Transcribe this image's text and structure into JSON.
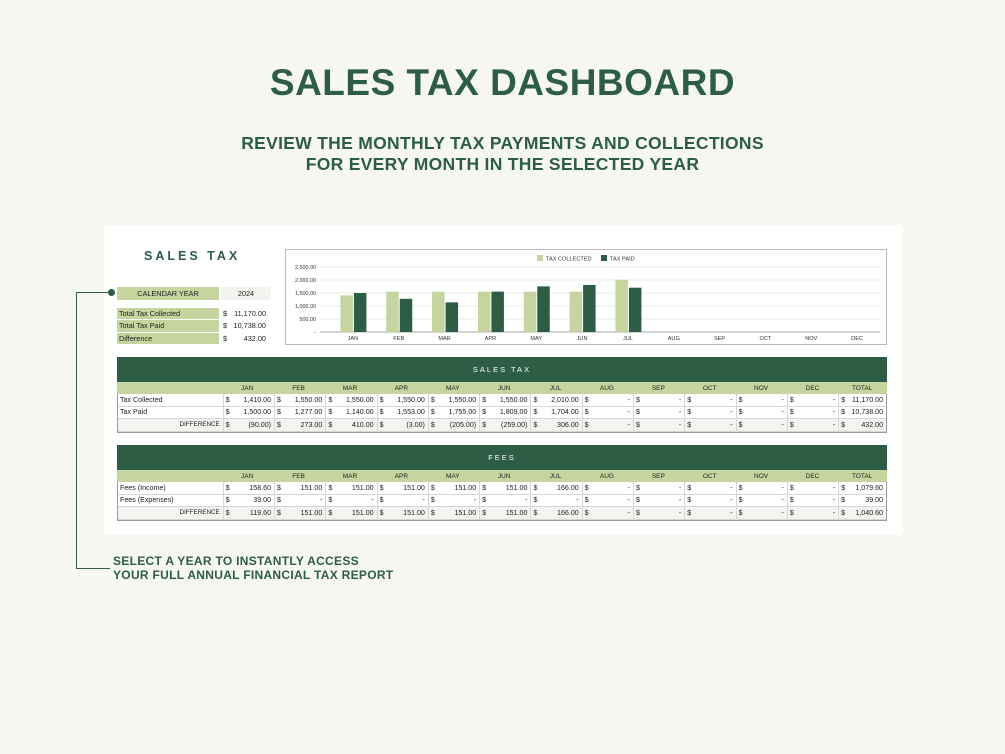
{
  "header": {
    "title": "SALES TAX DASHBOARD",
    "subtitle_line1": "REVIEW THE MONTHLY TAX PAYMENTS AND COLLECTIONS",
    "subtitle_line2": "FOR EVERY MONTH IN THE SELECTED YEAR"
  },
  "sheet": {
    "title": "SALES TAX",
    "calendar_label": "CALENDAR YEAR",
    "calendar_year": "2024",
    "summary": [
      {
        "label": "Total Tax Collected",
        "currency": "$",
        "value": "11,170.00"
      },
      {
        "label": "Total Tax Paid",
        "currency": "$",
        "value": "10,738.00"
      },
      {
        "label": "Difference",
        "currency": "$",
        "value": "432.00"
      }
    ]
  },
  "chart_data": {
    "type": "bar",
    "categories": [
      "JAN",
      "FEB",
      "MAR",
      "APR",
      "MAY",
      "JUN",
      "JUL",
      "AUG",
      "SEP",
      "OCT",
      "NOV",
      "DEC"
    ],
    "series": [
      {
        "name": "TAX COLLECTED",
        "color": "#c6d5a0",
        "values": [
          1410,
          1550,
          1550,
          1550,
          1550,
          1550,
          2010,
          0,
          0,
          0,
          0,
          0
        ]
      },
      {
        "name": "TAX PAID",
        "color": "#2e5d45",
        "values": [
          1500,
          1277,
          1140,
          1553,
          1755,
          1809,
          1704,
          0,
          0,
          0,
          0,
          0
        ]
      }
    ],
    "yticks": [
      "2,500.00",
      "2,000.00",
      "1,500.00",
      "1,000.00",
      "500.00",
      "-"
    ],
    "ylim": [
      0,
      2500
    ],
    "legend": "top-center",
    "grid": true
  },
  "sales_tax_table": {
    "title": "SALES TAX",
    "columns": [
      "JAN",
      "FEB",
      "MAR",
      "APR",
      "MAY",
      "JUN",
      "JUL",
      "AUG",
      "SEP",
      "OCT",
      "NOV",
      "DEC",
      "TOTAL"
    ],
    "rows": [
      {
        "label": "Tax Collected",
        "values": [
          "1,410.00",
          "1,550.00",
          "1,550.00",
          "1,550.00",
          "1,550.00",
          "1,550.00",
          "2,010.00",
          "-",
          "-",
          "-",
          "-",
          "-",
          "11,170.00"
        ]
      },
      {
        "label": "Tax Paid",
        "values": [
          "1,500.00",
          "1,277.00",
          "1,140.00",
          "1,553.00",
          "1,755.00",
          "1,809.00",
          "1,704.00",
          "-",
          "-",
          "-",
          "-",
          "-",
          "10,738.00"
        ]
      },
      {
        "label": "DIFFERENCE",
        "values": [
          "(90.00)",
          "273.00",
          "410.00",
          "(3.00)",
          "(205.00)",
          "(259.00)",
          "306.00",
          "-",
          "-",
          "-",
          "-",
          "-",
          "432.00"
        ]
      }
    ]
  },
  "fees_table": {
    "title": "FEES",
    "columns": [
      "JAN",
      "FEB",
      "MAR",
      "APR",
      "MAY",
      "JUN",
      "JUL",
      "AUG",
      "SEP",
      "OCT",
      "NOV",
      "DEC",
      "TOTAL"
    ],
    "rows": [
      {
        "label": "Fees (Income)",
        "values": [
          "158.60",
          "151.00",
          "151.00",
          "151.00",
          "151.00",
          "151.00",
          "166.00",
          "-",
          "-",
          "-",
          "-",
          "-",
          "1,079.60"
        ]
      },
      {
        "label": "Fees (Expenses)",
        "values": [
          "39.00",
          "-",
          "-",
          "-",
          "-",
          "-",
          "-",
          "-",
          "-",
          "-",
          "-",
          "-",
          "39.00"
        ]
      },
      {
        "label": "DIFFERENCE",
        "values": [
          "119.60",
          "151.00",
          "151.00",
          "151.00",
          "151.00",
          "151.00",
          "166.00",
          "-",
          "-",
          "-",
          "-",
          "-",
          "1,040.60"
        ]
      }
    ]
  },
  "callout": {
    "line1": "SELECT A YEAR TO INSTANTLY ACCESS",
    "line2": "YOUR FULL ANNUAL FINANCIAL TAX REPORT"
  },
  "currency_symbol": "$"
}
